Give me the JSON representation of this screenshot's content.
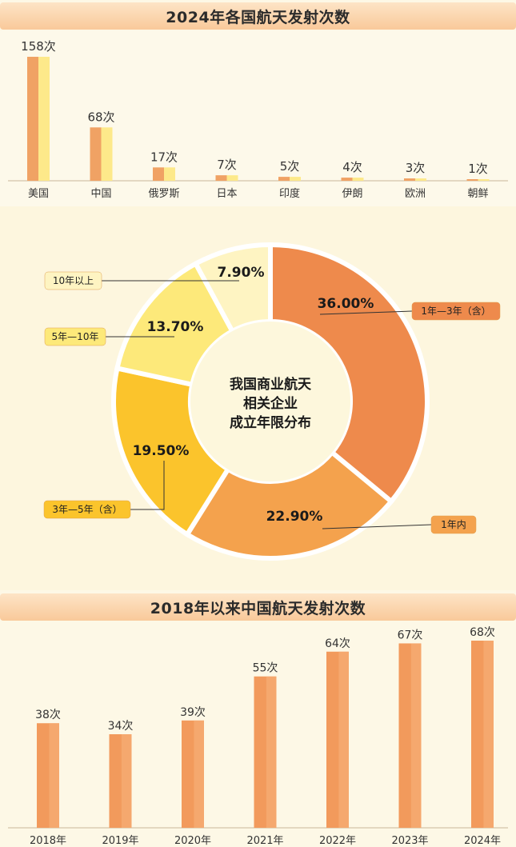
{
  "charts": {
    "launches_2024": {
      "title": "2024年各国航天发射次数",
      "chart_data": {
        "type": "bar",
        "title": "2024年各国航天发射次数",
        "categories": [
          "美国",
          "中国",
          "俄罗斯",
          "日本",
          "印度",
          "伊朗",
          "欧洲",
          "朝鲜"
        ],
        "values": [
          158,
          68,
          17,
          7,
          5,
          4,
          3,
          1
        ],
        "value_labels": [
          "158次",
          "68次",
          "17次",
          "7次",
          "5次",
          "4次",
          "3次",
          "1次"
        ],
        "ylim": [
          0,
          158
        ],
        "grid": false,
        "colors": {
          "bar_left": "#f0a264",
          "bar_right": "#fde98a"
        }
      }
    },
    "company_age": {
      "chart_data": {
        "type": "pie",
        "center_text": [
          "我国商业航天",
          "相关企业",
          "成立年限分布"
        ],
        "slices": [
          {
            "label": "1年—3年（含）",
            "value": 36.0,
            "display": "36.00%",
            "color": "#ee8a4c"
          },
          {
            "label": "1年内",
            "value": 22.9,
            "display": "22.90%",
            "color": "#f4a24d"
          },
          {
            "label": "3年—5年（含）",
            "value": 19.5,
            "display": "19.50%",
            "color": "#fbc42c"
          },
          {
            "label": "5年—10年",
            "value": 13.7,
            "display": "13.70%",
            "color": "#fde97a"
          },
          {
            "label": "10年以上",
            "value": 7.9,
            "display": "7.90%",
            "color": "#fef4c2"
          }
        ]
      }
    },
    "china_launches": {
      "title": "2018年以来中国航天发射次数",
      "chart_data": {
        "type": "bar",
        "title": "2018年以来中国航天发射次数",
        "categories": [
          "2018年",
          "2019年",
          "2020年",
          "2021年",
          "2022年",
          "2023年",
          "2024年"
        ],
        "values": [
          38,
          34,
          39,
          55,
          64,
          67,
          68
        ],
        "value_labels": [
          "38次",
          "34次",
          "39次",
          "55次",
          "64次",
          "67次",
          "68次"
        ],
        "ylim": [
          0,
          68
        ],
        "grid": false,
        "colors": {
          "bar": "#f29a5c",
          "bar_light": "#f8b57e"
        }
      }
    }
  }
}
